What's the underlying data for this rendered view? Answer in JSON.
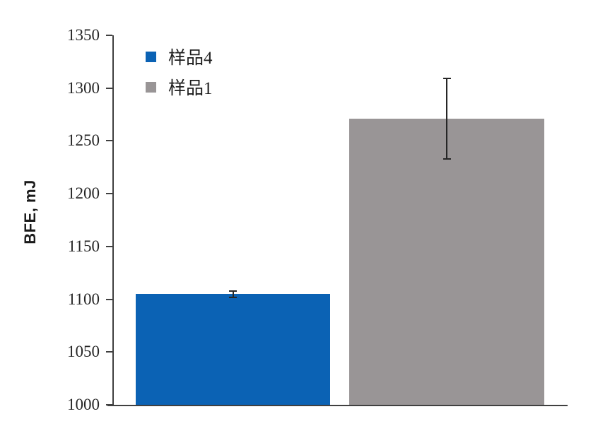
{
  "chart_data": {
    "type": "bar",
    "title": "",
    "xlabel": "",
    "ylabel": "BFE, mJ",
    "ylim": [
      1000,
      1350
    ],
    "ytick_step": 50,
    "grid": false,
    "legend_position": "top-left-inside",
    "categories": [
      "样品4",
      "样品1"
    ],
    "series": [
      {
        "name": "样品4",
        "value": 1105,
        "error": 3,
        "color": "#0b62b4"
      },
      {
        "name": "样品1",
        "value": 1271,
        "error": 38,
        "color": "#999596"
      }
    ],
    "legend_entries": [
      {
        "label": "样品4",
        "color": "#0b62b4"
      },
      {
        "label": "样品1",
        "color": "#999596"
      }
    ],
    "axis_color": "#404040",
    "error_bar_color": "#262626",
    "tick_label_color": "#262626"
  }
}
